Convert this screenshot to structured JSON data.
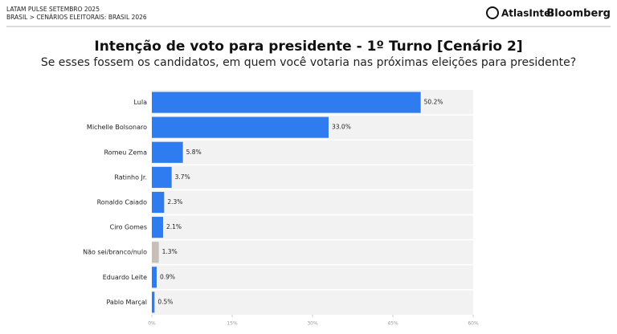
{
  "header": {
    "report": "LATAM PULSE SETEMBRO 2025",
    "breadcrumb": "BRASIL > CENÁRIOS ELEITORAIS: BRASIL 2026",
    "brand1": "AtlasIntel",
    "brand2": "Bloomberg"
  },
  "chart_data": {
    "type": "bar",
    "orientation": "horizontal",
    "title": "Intenção de voto para presidente - 1º Turno [Cenário 2]",
    "subtitle": "Se esses fossem os candidatos, em quem você votaria nas próximas eleições para presidente?",
    "categories": [
      "Lula",
      "Michelle Bolsonaro",
      "Romeu Zema",
      "Ratinho Jr.",
      "Ronaldo Caiado",
      "Ciro Gomes",
      "Não sei/branco/nulo",
      "Eduardo Leite",
      "Pablo Marçal"
    ],
    "values": [
      50.2,
      33.0,
      5.8,
      3.7,
      2.3,
      2.1,
      1.3,
      0.9,
      0.5
    ],
    "value_labels": [
      "50.2%",
      "33.0%",
      "5.8%",
      "3.7%",
      "2.3%",
      "2.1%",
      "1.3%",
      "0.9%",
      "0.5%"
    ],
    "colors": [
      "#2f7cf0",
      "#2f7cf0",
      "#2f7cf0",
      "#2f7cf0",
      "#2f7cf0",
      "#2f7cf0",
      "#c9bdb8",
      "#2f7cf0",
      "#2f7cf0"
    ],
    "xlim": [
      0,
      60
    ],
    "xticks": [
      {
        "value": 0,
        "label": "0%"
      },
      {
        "value": 15,
        "label": "15%"
      },
      {
        "value": 30,
        "label": "30%"
      },
      {
        "value": 45,
        "label": "45%"
      },
      {
        "value": 60,
        "label": "60%"
      }
    ]
  }
}
